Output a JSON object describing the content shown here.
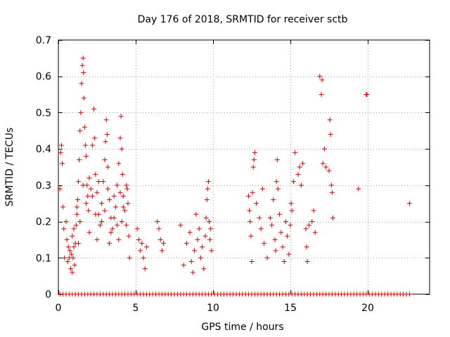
{
  "chart_data": {
    "type": "scatter",
    "title": "Day 176 of 2018, SRMTID for receiver sctb",
    "xlabel": "GPS time / hours",
    "ylabel": "SRMTID / TECUs",
    "xlim": [
      0,
      24
    ],
    "ylim": [
      0,
      0.7
    ],
    "xticks": [
      0,
      5,
      10,
      15,
      20
    ],
    "yticks": [
      0,
      0.1,
      0.2,
      0.3,
      0.4,
      0.5,
      0.6,
      0.7
    ],
    "xtick_labels": [
      "0",
      "5",
      "10",
      "15",
      "20"
    ],
    "ytick_labels": [
      "0",
      "0.1",
      "0.2",
      "0.3",
      "0.4",
      "0.5",
      "0.6",
      "0.7"
    ],
    "grid": true,
    "marker": "+",
    "color": "#d40000",
    "series": [
      {
        "name": "SRMTID",
        "points": [
          [
            0.1,
            0.29
          ],
          [
            0.15,
            0.39
          ],
          [
            0.2,
            0.41
          ],
          [
            0.25,
            0.36
          ],
          [
            0.3,
            0.24
          ],
          [
            0.35,
            0.18
          ],
          [
            0.4,
            0.1
          ],
          [
            0.5,
            0.2
          ],
          [
            0.55,
            0.15
          ],
          [
            0.6,
            0.09
          ],
          [
            0.65,
            0.13
          ],
          [
            0.7,
            0.1
          ],
          [
            0.75,
            0.12
          ],
          [
            0.8,
            0.07
          ],
          [
            0.85,
            0.11
          ],
          [
            0.9,
            0.06
          ],
          [
            0.95,
            0.1
          ],
          [
            1.0,
            0.13
          ],
          [
            1.05,
            0.08
          ],
          [
            1.1,
            0.14
          ],
          [
            1.15,
            0.19
          ],
          [
            1.2,
            0.22
          ],
          [
            1.25,
            0.26
          ],
          [
            1.3,
            0.31
          ],
          [
            1.35,
            0.37
          ],
          [
            1.4,
            0.45
          ],
          [
            1.45,
            0.5
          ],
          [
            1.5,
            0.58
          ],
          [
            1.55,
            0.63
          ],
          [
            1.6,
            0.65
          ],
          [
            1.62,
            0.61
          ],
          [
            1.65,
            0.54
          ],
          [
            1.7,
            0.46
          ],
          [
            1.75,
            0.41
          ],
          [
            1.8,
            0.38
          ],
          [
            1.85,
            0.3
          ],
          [
            1.9,
            0.27
          ],
          [
            1.95,
            0.23
          ],
          [
            2.0,
            0.17
          ],
          [
            2.1,
            0.29
          ],
          [
            2.2,
            0.41
          ],
          [
            2.3,
            0.51
          ],
          [
            2.35,
            0.43
          ],
          [
            2.4,
            0.33
          ],
          [
            2.5,
            0.28
          ],
          [
            2.6,
            0.22
          ],
          [
            2.7,
            0.19
          ],
          [
            2.8,
            0.25
          ],
          [
            2.9,
            0.31
          ],
          [
            3.0,
            0.37
          ],
          [
            3.05,
            0.42
          ],
          [
            3.1,
            0.48
          ],
          [
            3.15,
            0.44
          ],
          [
            3.2,
            0.35
          ],
          [
            3.3,
            0.26
          ],
          [
            3.4,
            0.21
          ],
          [
            3.5,
            0.18
          ],
          [
            3.6,
            0.27
          ],
          [
            3.7,
            0.24
          ],
          [
            3.8,
            0.3
          ],
          [
            3.9,
            0.36
          ],
          [
            4.0,
            0.43
          ],
          [
            4.05,
            0.49
          ],
          [
            4.1,
            0.4
          ],
          [
            4.15,
            0.33
          ],
          [
            4.2,
            0.27
          ],
          [
            4.3,
            0.23
          ],
          [
            4.4,
            0.19
          ],
          [
            4.45,
            0.29
          ],
          [
            4.5,
            0.25
          ],
          [
            4.55,
            0.16
          ],
          [
            4.6,
            0.1
          ],
          [
            0.9,
            0.16
          ],
          [
            1.0,
            0.18
          ],
          [
            1.2,
            0.24
          ],
          [
            1.4,
            0.2
          ],
          [
            1.6,
            0.3
          ],
          [
            1.8,
            0.25
          ],
          [
            2.0,
            0.32
          ],
          [
            2.2,
            0.27
          ],
          [
            2.4,
            0.22
          ],
          [
            2.6,
            0.31
          ],
          [
            2.8,
            0.2
          ],
          [
            3.0,
            0.23
          ],
          [
            3.2,
            0.29
          ],
          [
            3.4,
            0.17
          ],
          [
            3.6,
            0.21
          ],
          [
            3.8,
            0.19
          ],
          [
            4.0,
            0.28
          ],
          [
            4.2,
            0.24
          ],
          [
            4.4,
            0.3
          ],
          [
            2.5,
            0.15
          ],
          [
            3.3,
            0.14
          ],
          [
            3.9,
            0.15
          ],
          [
            4.1,
            0.2
          ],
          [
            1.3,
            0.14
          ],
          [
            5.1,
            0.18
          ],
          [
            5.2,
            0.15
          ],
          [
            5.3,
            0.12
          ],
          [
            5.4,
            0.14
          ],
          [
            5.5,
            0.1
          ],
          [
            5.6,
            0.07
          ],
          [
            5.7,
            0.13
          ],
          [
            6.4,
            0.2
          ],
          [
            6.5,
            0.18
          ],
          [
            6.6,
            0.15
          ],
          [
            6.7,
            0.12
          ],
          [
            6.8,
            0.14
          ],
          [
            7.9,
            0.19
          ],
          [
            8.1,
            0.08
          ],
          [
            8.3,
            0.14
          ],
          [
            8.5,
            0.17
          ],
          [
            8.6,
            0.09
          ],
          [
            8.7,
            0.06
          ],
          [
            8.8,
            0.12
          ],
          [
            8.9,
            0.22
          ],
          [
            9.0,
            0.15
          ],
          [
            9.1,
            0.18
          ],
          [
            9.2,
            0.1
          ],
          [
            9.3,
            0.13
          ],
          [
            9.4,
            0.07
          ],
          [
            9.5,
            0.16
          ],
          [
            9.55,
            0.21
          ],
          [
            9.6,
            0.26
          ],
          [
            9.65,
            0.29
          ],
          [
            9.7,
            0.31
          ],
          [
            9.75,
            0.2
          ],
          [
            9.8,
            0.15
          ],
          [
            9.85,
            0.18
          ],
          [
            9.9,
            0.12
          ],
          [
            12.3,
            0.27
          ],
          [
            12.35,
            0.23
          ],
          [
            12.4,
            0.2
          ],
          [
            12.45,
            0.16
          ],
          [
            12.5,
            0.09
          ],
          [
            12.55,
            0.28
          ],
          [
            12.6,
            0.35
          ],
          [
            12.65,
            0.37
          ],
          [
            12.7,
            0.39
          ],
          [
            12.8,
            0.25
          ],
          [
            13.0,
            0.21
          ],
          [
            13.1,
            0.18
          ],
          [
            13.2,
            0.29
          ],
          [
            13.3,
            0.14
          ],
          [
            13.5,
            0.1
          ],
          [
            13.7,
            0.21
          ],
          [
            13.8,
            0.19
          ],
          [
            13.9,
            0.26
          ],
          [
            14.0,
            0.15
          ],
          [
            14.05,
            0.12
          ],
          [
            14.1,
            0.31
          ],
          [
            14.15,
            0.37
          ],
          [
            14.2,
            0.29
          ],
          [
            14.3,
            0.22
          ],
          [
            14.4,
            0.17
          ],
          [
            14.5,
            0.13
          ],
          [
            14.6,
            0.09
          ],
          [
            14.7,
            0.2
          ],
          [
            14.8,
            0.16
          ],
          [
            14.9,
            0.11
          ],
          [
            15.0,
            0.19
          ],
          [
            15.05,
            0.25
          ],
          [
            15.1,
            0.23
          ],
          [
            15.2,
            0.31
          ],
          [
            15.3,
            0.39
          ],
          [
            15.5,
            0.33
          ],
          [
            15.6,
            0.35
          ],
          [
            15.7,
            0.3
          ],
          [
            15.8,
            0.36
          ],
          [
            16.0,
            0.18
          ],
          [
            16.05,
            0.13
          ],
          [
            16.1,
            0.09
          ],
          [
            16.2,
            0.19
          ],
          [
            16.4,
            0.2
          ],
          [
            16.5,
            0.23
          ],
          [
            16.6,
            0.17
          ],
          [
            16.9,
            0.6
          ],
          [
            17.0,
            0.55
          ],
          [
            17.05,
            0.59
          ],
          [
            17.1,
            0.36
          ],
          [
            17.2,
            0.4
          ],
          [
            17.3,
            0.35
          ],
          [
            17.5,
            0.34
          ],
          [
            17.55,
            0.48
          ],
          [
            17.6,
            0.44
          ],
          [
            17.65,
            0.3
          ],
          [
            17.7,
            0.28
          ],
          [
            17.75,
            0.21
          ],
          [
            19.4,
            0.29
          ],
          [
            19.9,
            0.55
          ],
          [
            19.95,
            0.55
          ],
          [
            22.7,
            0.25
          ],
          [
            0.1,
            0
          ],
          [
            0.3,
            0
          ],
          [
            0.5,
            0
          ],
          [
            0.7,
            0
          ],
          [
            0.9,
            0
          ],
          [
            1.1,
            0
          ],
          [
            1.3,
            0
          ],
          [
            1.5,
            0
          ],
          [
            1.7,
            0
          ],
          [
            1.9,
            0
          ],
          [
            2.1,
            0
          ],
          [
            2.3,
            0
          ],
          [
            2.5,
            0
          ],
          [
            2.7,
            0
          ],
          [
            2.9,
            0
          ],
          [
            3.1,
            0
          ],
          [
            3.3,
            0
          ],
          [
            3.5,
            0
          ],
          [
            3.7,
            0
          ],
          [
            3.9,
            0
          ],
          [
            4.1,
            0
          ],
          [
            4.3,
            0
          ],
          [
            4.5,
            0
          ],
          [
            4.7,
            0
          ],
          [
            4.9,
            0
          ],
          [
            5.1,
            0
          ],
          [
            5.3,
            0
          ],
          [
            5.5,
            0
          ],
          [
            5.7,
            0
          ],
          [
            5.9,
            0
          ],
          [
            6.1,
            0
          ],
          [
            6.3,
            0
          ],
          [
            6.5,
            0
          ],
          [
            6.7,
            0
          ],
          [
            6.9,
            0
          ],
          [
            7.1,
            0
          ],
          [
            7.3,
            0
          ],
          [
            7.5,
            0
          ],
          [
            7.7,
            0
          ],
          [
            7.9,
            0
          ],
          [
            8.1,
            0
          ],
          [
            8.3,
            0
          ],
          [
            8.5,
            0
          ],
          [
            8.7,
            0
          ],
          [
            8.9,
            0
          ],
          [
            9.1,
            0
          ],
          [
            9.3,
            0
          ],
          [
            9.5,
            0
          ],
          [
            9.7,
            0
          ],
          [
            9.9,
            0
          ],
          [
            10.1,
            0
          ],
          [
            10.3,
            0
          ],
          [
            10.5,
            0
          ],
          [
            10.7,
            0
          ],
          [
            10.9,
            0
          ],
          [
            11.1,
            0
          ],
          [
            11.3,
            0
          ],
          [
            11.5,
            0
          ],
          [
            11.7,
            0
          ],
          [
            11.9,
            0
          ],
          [
            12.1,
            0
          ],
          [
            12.3,
            0
          ],
          [
            12.5,
            0
          ],
          [
            12.7,
            0
          ],
          [
            12.9,
            0
          ],
          [
            13.1,
            0
          ],
          [
            13.3,
            0
          ],
          [
            13.5,
            0
          ],
          [
            13.7,
            0
          ],
          [
            13.9,
            0
          ],
          [
            14.1,
            0
          ],
          [
            14.3,
            0
          ],
          [
            14.5,
            0
          ],
          [
            14.7,
            0
          ],
          [
            14.9,
            0
          ],
          [
            15.1,
            0
          ],
          [
            15.3,
            0
          ],
          [
            15.5,
            0
          ],
          [
            15.7,
            0
          ],
          [
            15.9,
            0
          ],
          [
            16.1,
            0
          ],
          [
            16.3,
            0
          ],
          [
            16.5,
            0
          ],
          [
            16.7,
            0
          ],
          [
            16.9,
            0
          ],
          [
            17.1,
            0
          ],
          [
            17.3,
            0
          ],
          [
            17.5,
            0
          ],
          [
            17.7,
            0
          ],
          [
            17.9,
            0
          ],
          [
            18.1,
            0
          ],
          [
            18.3,
            0
          ],
          [
            18.5,
            0
          ],
          [
            18.7,
            0
          ],
          [
            18.9,
            0
          ],
          [
            19.1,
            0
          ],
          [
            19.3,
            0
          ],
          [
            19.5,
            0
          ],
          [
            19.7,
            0
          ],
          [
            19.9,
            0
          ],
          [
            20.1,
            0
          ],
          [
            20.3,
            0
          ],
          [
            20.5,
            0
          ],
          [
            20.7,
            0
          ],
          [
            20.9,
            0
          ],
          [
            21.1,
            0
          ],
          [
            21.3,
            0
          ],
          [
            21.5,
            0
          ],
          [
            21.7,
            0
          ],
          [
            21.9,
            0
          ],
          [
            22.1,
            0
          ],
          [
            22.3,
            0
          ],
          [
            22.5,
            0
          ],
          [
            22.7,
            0
          ]
        ]
      }
    ]
  }
}
